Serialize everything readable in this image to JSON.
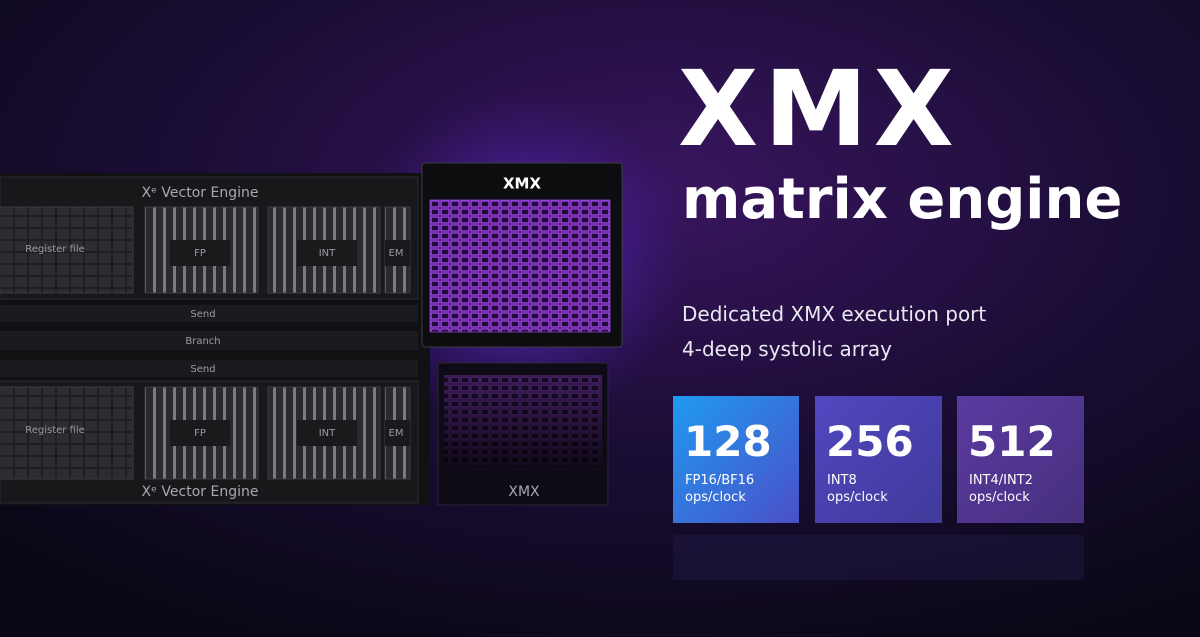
{
  "title": {
    "logo": "XMX",
    "subtitle": "matrix engine"
  },
  "features": [
    "Dedicated XMX execution port",
    "4-deep systolic array"
  ],
  "stats": [
    {
      "value": 128,
      "format": "FP16/BF16",
      "unit": "ops/clock"
    },
    {
      "value": 256,
      "format": "INT8",
      "unit": "ops/clock"
    },
    {
      "value": 512,
      "format": "INT4/INT2",
      "unit": "ops/clock"
    }
  ],
  "diagram": {
    "vector_engines": [
      {
        "label": "Xᵉ Vector Engine",
        "register_file": "Register file",
        "units": [
          "FP",
          "INT",
          "EM"
        ]
      },
      {
        "label": "Xᵉ Vector Engine",
        "register_file": "Register file",
        "units": [
          "FP",
          "INT",
          "EM"
        ]
      }
    ],
    "buses": [
      "Send",
      "Branch",
      "Send"
    ],
    "xmx_label": "XMX",
    "xmx_reflection_label": "XMX"
  }
}
